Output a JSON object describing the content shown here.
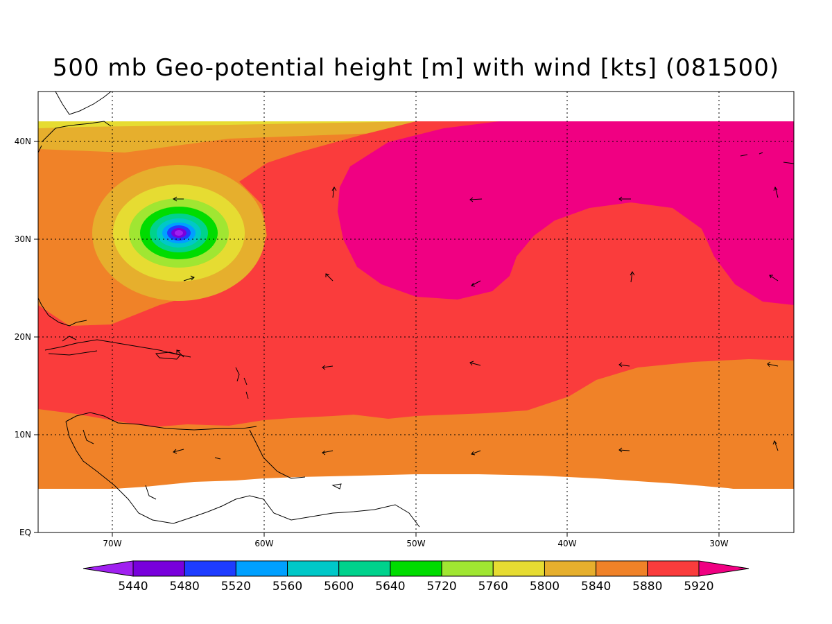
{
  "title": "500 mb Geo-potential height [m] with wind [kts] (081500)",
  "lat_labels": [
    "EQ",
    "10N",
    "20N",
    "30N",
    "40N"
  ],
  "lon_labels": [
    "70W",
    "60W",
    "50W",
    "40W",
    "30W"
  ],
  "colorbar": {
    "labels": [
      "5440",
      "5480",
      "5520",
      "5560",
      "5600",
      "5640",
      "5720",
      "5760",
      "5800",
      "5840",
      "5880",
      "5920"
    ],
    "colors": [
      "#a020f0",
      "#7800dc",
      "#1e3cff",
      "#00a0ff",
      "#00c8c8",
      "#00d28c",
      "#00dc00",
      "#a0e632",
      "#e6dc32",
      "#e6af2d",
      "#f08228",
      "#fa3c3c",
      "#f00082"
    ]
  },
  "chart_data": {
    "type": "contour-map",
    "title": "500 mb Geo-potential height [m] with wind [kts] (081500)",
    "xlabel": "",
    "ylabel": "",
    "xlim": [
      -75,
      -25
    ],
    "ylim": [
      0,
      45
    ],
    "contour_levels": [
      5440,
      5480,
      5520,
      5560,
      5600,
      5640,
      5720,
      5760,
      5800,
      5840,
      5880,
      5920
    ],
    "grid": true,
    "legend": "bottom colorbar",
    "low_center": {
      "lon": -65.5,
      "lat": 30.5
    },
    "high_zone": "5920+ (magenta) over central Atlantic 24N-42N",
    "wind_arrows": "easterly flow at low latitudes, cyclonic circulation near low"
  }
}
